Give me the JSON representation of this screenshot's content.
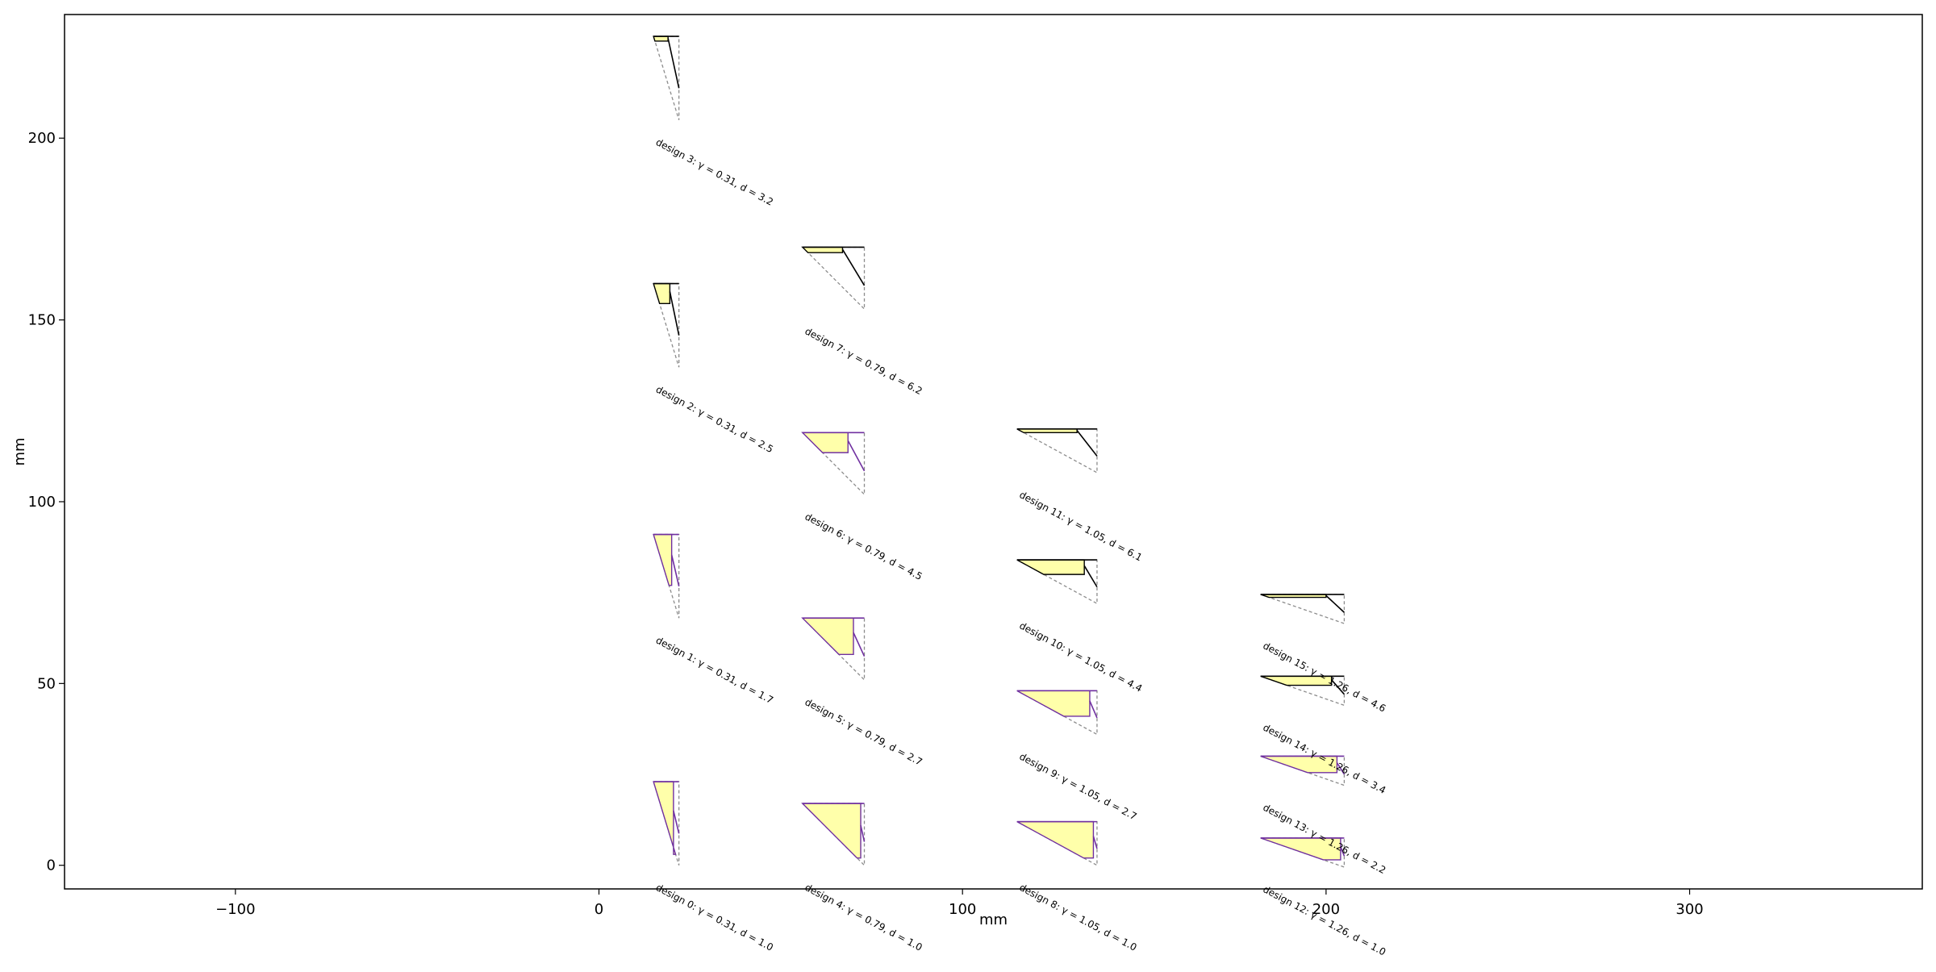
{
  "chart_data": {
    "type": "scatter",
    "title": "",
    "xlabel": "mm",
    "ylabel": "mm",
    "xlim": [
      -147,
      364
    ],
    "ylim": [
      -6.5,
      234
    ],
    "xticks": [
      -100,
      0,
      100,
      200,
      300
    ],
    "yticks": [
      0,
      50,
      100,
      150,
      200
    ],
    "xtick_labels": [
      "−100",
      "0",
      "100",
      "200",
      "300"
    ],
    "ytick_labels": [
      "0",
      "50",
      "100",
      "150",
      "200"
    ],
    "grid": false,
    "legend": "none",
    "colors": {
      "fill": "#ffffaa",
      "outline": "#000000",
      "dashed": "#8c8c8c",
      "accent_purple": "#7030a0"
    },
    "designs": [
      {
        "id": 0,
        "gamma": "0.31",
        "d": "1.0",
        "label": "design 0: γ = 0.31, d = 1.0",
        "x0": 15,
        "y0": 23,
        "w": 7,
        "h": 23,
        "fill_w": 5.5,
        "fill_h": 20,
        "purple": true
      },
      {
        "id": 1,
        "gamma": "0.31",
        "d": "1.7",
        "label": "design 1: γ = 0.31, d = 1.7",
        "x0": 15,
        "y0": 91,
        "w": 7,
        "h": 23,
        "fill_w": 5,
        "fill_h": 14,
        "purple": true
      },
      {
        "id": 2,
        "gamma": "0.31",
        "d": "2.5",
        "label": "design 2: γ = 0.31, d = 2.5",
        "x0": 15,
        "y0": 160,
        "w": 7,
        "h": 23,
        "fill_w": 4.5,
        "fill_h": 5.5,
        "purple": false
      },
      {
        "id": 3,
        "gamma": "0.31",
        "d": "3.2",
        "label": "design 3: γ = 0.31, d = 3.2",
        "x0": 15,
        "y0": 228,
        "w": 7,
        "h": 23,
        "fill_w": 4,
        "fill_h": 1.3,
        "purple": false
      },
      {
        "id": 4,
        "gamma": "0.79",
        "d": "1.0",
        "label": "design 4: γ = 0.79, d = 1.0",
        "x0": 56,
        "y0": 17,
        "w": 17,
        "h": 17,
        "fill_w": 16,
        "fill_h": 15,
        "purple": true
      },
      {
        "id": 5,
        "gamma": "0.79",
        "d": "2.7",
        "label": "design 5: γ = 0.79, d = 2.7",
        "x0": 56,
        "y0": 68,
        "w": 17,
        "h": 17,
        "fill_w": 14,
        "fill_h": 10,
        "purple": true
      },
      {
        "id": 6,
        "gamma": "0.79",
        "d": "4.5",
        "label": "design 6: γ = 0.79, d = 4.5",
        "x0": 56,
        "y0": 119,
        "w": 17,
        "h": 17,
        "fill_w": 12.5,
        "fill_h": 5.5,
        "purple": true
      },
      {
        "id": 7,
        "gamma": "0.79",
        "d": "6.2",
        "label": "design 7: γ = 0.79, d = 6.2",
        "x0": 56,
        "y0": 170,
        "w": 17,
        "h": 17,
        "fill_w": 11,
        "fill_h": 1.5,
        "purple": false
      },
      {
        "id": 8,
        "gamma": "1.05",
        "d": "1.0",
        "label": "design 8: γ = 1.05, d = 1.0",
        "x0": 115,
        "y0": 12,
        "w": 22,
        "h": 12,
        "fill_w": 21,
        "fill_h": 10,
        "purple": true
      },
      {
        "id": 9,
        "gamma": "1.05",
        "d": "2.7",
        "label": "design 9: γ = 1.05, d = 2.7",
        "x0": 115,
        "y0": 48,
        "w": 22,
        "h": 12,
        "fill_w": 20,
        "fill_h": 7,
        "purple": true
      },
      {
        "id": 10,
        "gamma": "1.05",
        "d": "4.4",
        "label": "design 10: γ = 1.05, d = 4.4",
        "x0": 115,
        "y0": 84,
        "w": 22,
        "h": 12,
        "fill_w": 18.5,
        "fill_h": 4,
        "purple": false
      },
      {
        "id": 11,
        "gamma": "1.05",
        "d": "6.1",
        "label": "design 11: γ = 1.05, d = 6.1",
        "x0": 115,
        "y0": 120,
        "w": 22,
        "h": 12,
        "fill_w": 16.5,
        "fill_h": 1,
        "purple": false
      },
      {
        "id": 12,
        "gamma": "1.26",
        "d": "1.0",
        "label": "design 12: γ = 1.26, d = 1.0",
        "x0": 182,
        "y0": 7.5,
        "w": 23,
        "h": 8,
        "fill_w": 22,
        "fill_h": 6,
        "purple": true
      },
      {
        "id": 13,
        "gamma": "1.26",
        "d": "2.2",
        "label": "design 13: γ = 1.26, d = 2.2",
        "x0": 182,
        "y0": 30,
        "w": 23,
        "h": 8,
        "fill_w": 21,
        "fill_h": 4.5,
        "purple": true
      },
      {
        "id": 14,
        "gamma": "1.26",
        "d": "3.4",
        "label": "design 14: γ = 1.26, d = 3.4",
        "x0": 182,
        "y0": 52,
        "w": 23,
        "h": 8,
        "fill_w": 19.5,
        "fill_h": 2.5,
        "purple": false
      },
      {
        "id": 15,
        "gamma": "1.26",
        "d": "4.6",
        "label": "design 15: γ = 1.26, d = 4.6",
        "x0": 182,
        "y0": 74.5,
        "w": 23,
        "h": 8,
        "fill_w": 18,
        "fill_h": 0.8,
        "purple": false
      }
    ]
  }
}
